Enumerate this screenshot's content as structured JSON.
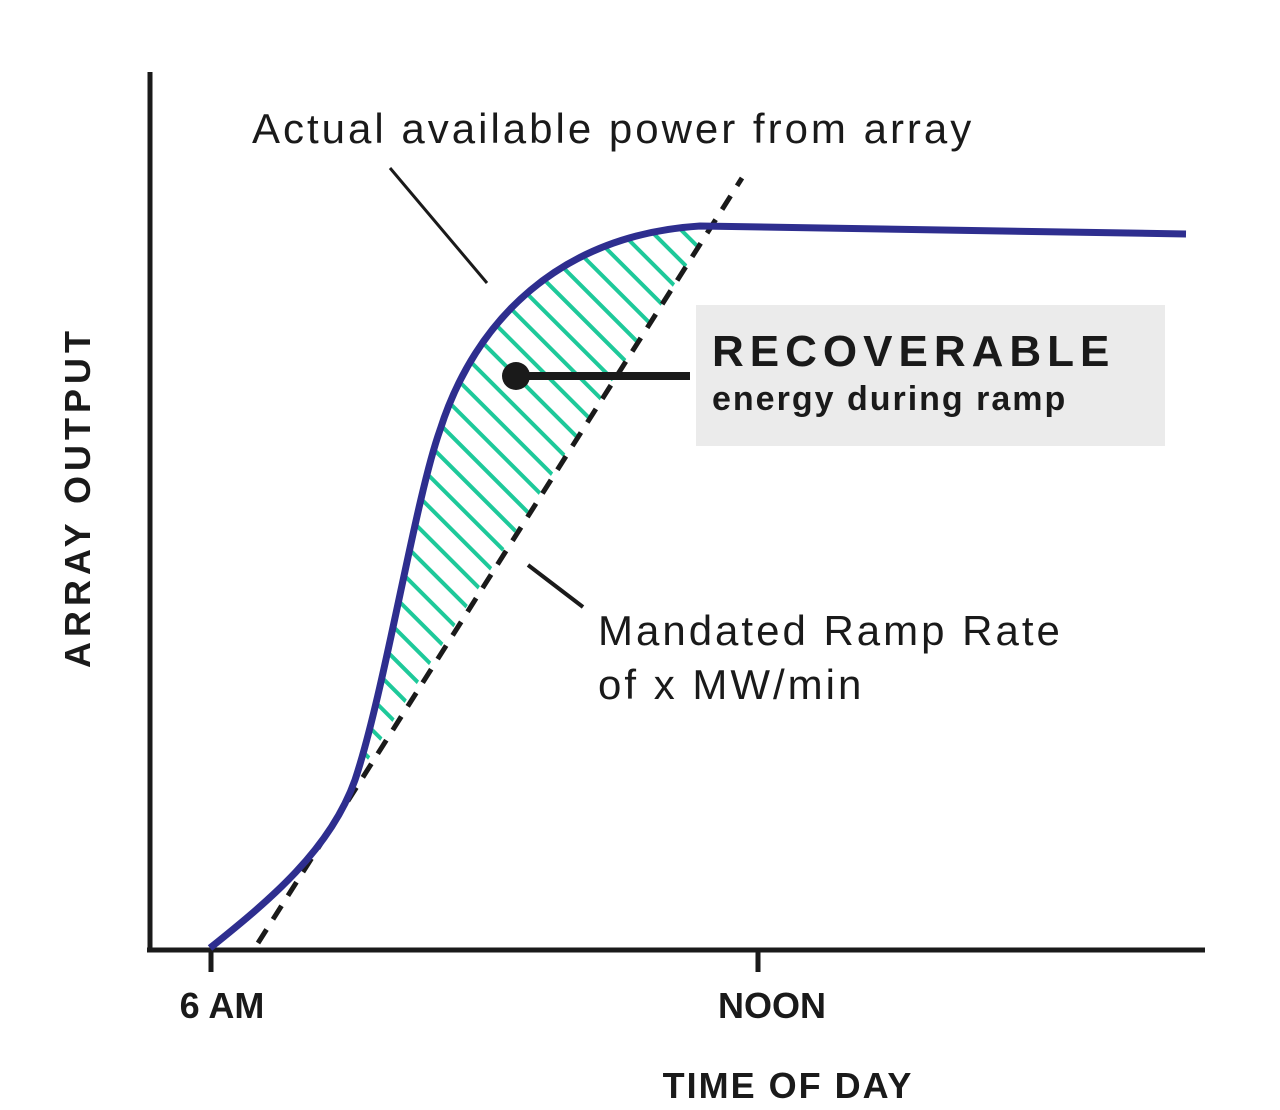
{
  "axes": {
    "y_label": "ARRAY OUTPUT",
    "x_label": "TIME OF DAY",
    "x_ticks": [
      "6 AM",
      "NOON"
    ]
  },
  "annotations": {
    "actual": "Actual available power from array",
    "recoverable": {
      "title": "RECOVERABLE",
      "subtitle": "energy during ramp"
    },
    "ramp_rate": [
      "Mandated Ramp Rate",
      "of x MW/min"
    ]
  }
}
